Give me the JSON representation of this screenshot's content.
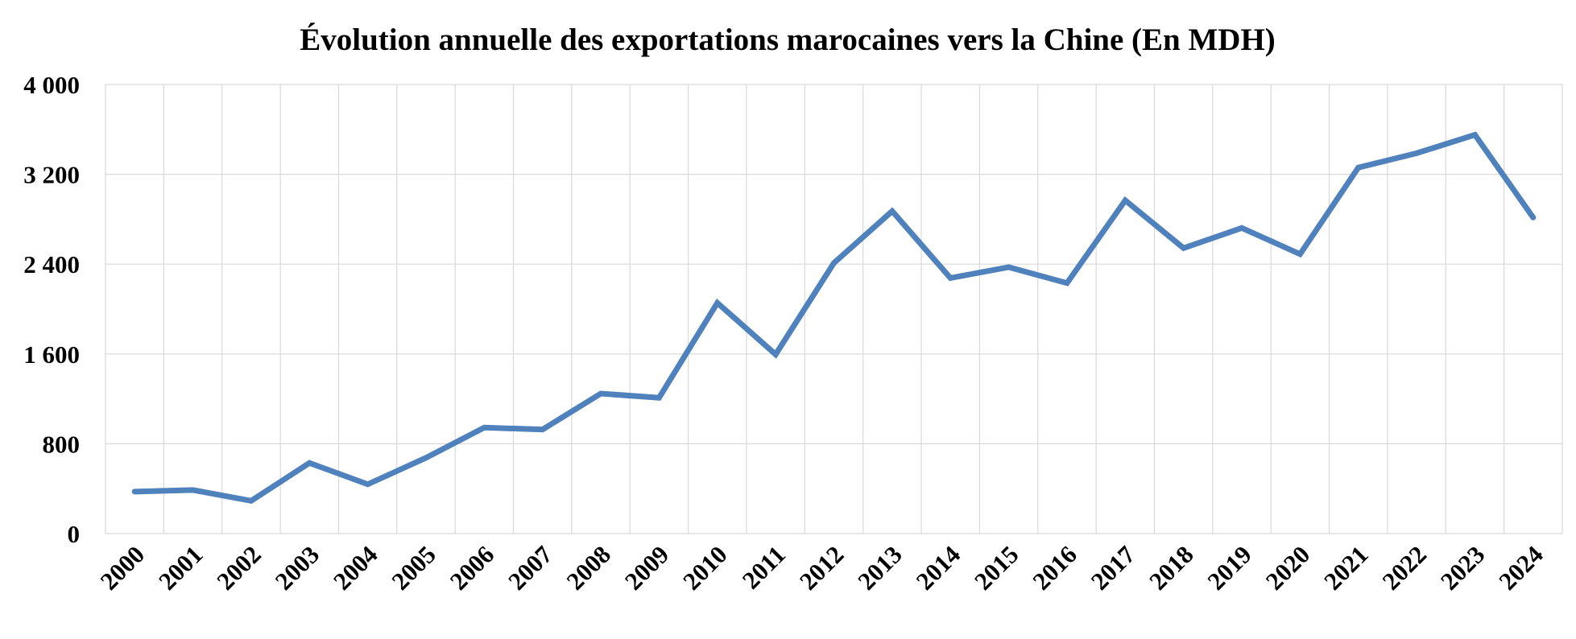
{
  "chart_data": {
    "type": "line",
    "title": "Évolution annuelle des exportations marocaines vers la Chine (En MDH)",
    "xlabel": "",
    "ylabel": "",
    "categories": [
      "2000",
      "2001",
      "2002",
      "2003",
      "2004",
      "2005",
      "2006",
      "2007",
      "2008",
      "2009",
      "2010",
      "2011",
      "2012",
      "2013",
      "2014",
      "2015",
      "2016",
      "2017",
      "2018",
      "2019",
      "2020",
      "2021",
      "2022",
      "2023",
      "2024"
    ],
    "series": [
      {
        "values": [
          374,
          388,
          292,
          629,
          439,
          675,
          944,
          927,
          1247,
          1210,
          2055,
          1596,
          2410,
          2872,
          2276,
          2373,
          2231,
          2968,
          2543,
          2722,
          2489,
          3260,
          3388,
          3552,
          2815
        ]
      }
    ],
    "ylim": [
      0,
      4000
    ],
    "yticks": [
      0,
      800,
      1600,
      2400,
      3200,
      4000
    ],
    "ytick_labels": [
      "0",
      "800",
      "1 600",
      "2 400",
      "3 200",
      "4 000"
    ],
    "grid": true,
    "legend": "none",
    "line_color": "#4f81bd"
  }
}
